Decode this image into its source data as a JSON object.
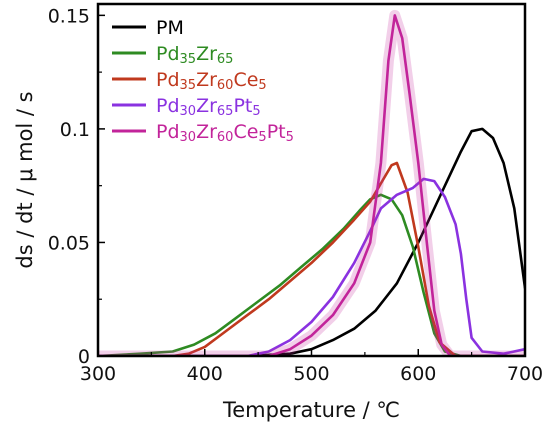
{
  "chart_data": {
    "type": "line",
    "xlabel": "Temperature / ℃",
    "ylabel": "ds / dt / μ mol / s",
    "xlim": [
      300,
      700
    ],
    "ylim": [
      0,
      0.155
    ],
    "x_ticks": [
      "300",
      "400",
      "500",
      "600",
      "700"
    ],
    "y_ticks": [
      "0",
      "0.05",
      "0.1",
      "0.15"
    ],
    "grid": false,
    "legend_position": "top-left",
    "series": [
      {
        "name": "PM",
        "legend": [
          {
            "t": "PM",
            "sub": false
          }
        ],
        "color": "#000000",
        "glow": false,
        "points": [
          [
            300,
            0
          ],
          [
            440,
            0
          ],
          [
            480,
            0.001
          ],
          [
            500,
            0.003
          ],
          [
            520,
            0.007
          ],
          [
            540,
            0.012
          ],
          [
            560,
            0.02
          ],
          [
            580,
            0.032
          ],
          [
            600,
            0.05
          ],
          [
            620,
            0.07
          ],
          [
            640,
            0.09
          ],
          [
            650,
            0.099
          ],
          [
            660,
            0.1
          ],
          [
            670,
            0.096
          ],
          [
            680,
            0.085
          ],
          [
            690,
            0.065
          ],
          [
            700,
            0.03
          ]
        ]
      },
      {
        "name": "Pd35Zr65",
        "legend": [
          {
            "t": "Pd",
            "sub": false
          },
          {
            "t": "35",
            "sub": true
          },
          {
            "t": "Zr",
            "sub": false
          },
          {
            "t": "65",
            "sub": true
          }
        ],
        "color": "#2e8b22",
        "glow": false,
        "points": [
          [
            300,
            0
          ],
          [
            340,
            0.001
          ],
          [
            370,
            0.002
          ],
          [
            390,
            0.005
          ],
          [
            410,
            0.01
          ],
          [
            430,
            0.017
          ],
          [
            450,
            0.024
          ],
          [
            470,
            0.031
          ],
          [
            490,
            0.039
          ],
          [
            510,
            0.047
          ],
          [
            530,
            0.056
          ],
          [
            545,
            0.064
          ],
          [
            555,
            0.069
          ],
          [
            565,
            0.071
          ],
          [
            575,
            0.069
          ],
          [
            585,
            0.062
          ],
          [
            595,
            0.048
          ],
          [
            605,
            0.028
          ],
          [
            615,
            0.01
          ],
          [
            625,
            0.002
          ],
          [
            640,
            0
          ],
          [
            700,
            0
          ]
        ]
      },
      {
        "name": "Pd35Zr60Ce5",
        "legend": [
          {
            "t": "Pd",
            "sub": false
          },
          {
            "t": "35",
            "sub": true
          },
          {
            "t": "Zr",
            "sub": false
          },
          {
            "t": "60",
            "sub": true
          },
          {
            "t": "Ce",
            "sub": false
          },
          {
            "t": "5",
            "sub": true
          }
        ],
        "color": "#c0391e",
        "glow": false,
        "points": [
          [
            300,
            0
          ],
          [
            370,
            0
          ],
          [
            385,
            0.001
          ],
          [
            400,
            0.004
          ],
          [
            420,
            0.011
          ],
          [
            440,
            0.018
          ],
          [
            460,
            0.025
          ],
          [
            480,
            0.033
          ],
          [
            500,
            0.041
          ],
          [
            520,
            0.05
          ],
          [
            540,
            0.06
          ],
          [
            555,
            0.068
          ],
          [
            565,
            0.076
          ],
          [
            575,
            0.084
          ],
          [
            580,
            0.085
          ],
          [
            590,
            0.072
          ],
          [
            600,
            0.048
          ],
          [
            610,
            0.022
          ],
          [
            620,
            0.006
          ],
          [
            635,
            0
          ],
          [
            700,
            0
          ]
        ]
      },
      {
        "name": "Pd30Zr65Pt5",
        "legend": [
          {
            "t": "Pd",
            "sub": false
          },
          {
            "t": "30",
            "sub": true
          },
          {
            "t": "Zr",
            "sub": false
          },
          {
            "t": "65",
            "sub": true
          },
          {
            "t": "Pt",
            "sub": false
          },
          {
            "t": "5",
            "sub": true
          }
        ],
        "color": "#8a32e0",
        "glow": false,
        "points": [
          [
            300,
            0
          ],
          [
            440,
            0
          ],
          [
            460,
            0.002
          ],
          [
            480,
            0.007
          ],
          [
            500,
            0.015
          ],
          [
            520,
            0.026
          ],
          [
            540,
            0.041
          ],
          [
            555,
            0.055
          ],
          [
            565,
            0.065
          ],
          [
            580,
            0.071
          ],
          [
            595,
            0.074
          ],
          [
            605,
            0.078
          ],
          [
            615,
            0.077
          ],
          [
            625,
            0.07
          ],
          [
            635,
            0.058
          ],
          [
            640,
            0.045
          ],
          [
            645,
            0.025
          ],
          [
            650,
            0.008
          ],
          [
            660,
            0.002
          ],
          [
            680,
            0.001
          ],
          [
            700,
            0.003
          ]
        ]
      },
      {
        "name": "Pd30Zr60Ce5Pt5",
        "legend": [
          {
            "t": "Pd",
            "sub": false
          },
          {
            "t": "30",
            "sub": true
          },
          {
            "t": "Zr",
            "sub": false
          },
          {
            "t": "60",
            "sub": true
          },
          {
            "t": "Ce",
            "sub": false
          },
          {
            "t": "5",
            "sub": true
          },
          {
            "t": "Pt",
            "sub": false
          },
          {
            "t": "5",
            "sub": true
          }
        ],
        "color": "#c2249a",
        "glow": true,
        "points": [
          [
            300,
            0
          ],
          [
            460,
            0
          ],
          [
            480,
            0.003
          ],
          [
            500,
            0.009
          ],
          [
            520,
            0.018
          ],
          [
            540,
            0.032
          ],
          [
            555,
            0.05
          ],
          [
            565,
            0.085
          ],
          [
            572,
            0.13
          ],
          [
            578,
            0.15
          ],
          [
            585,
            0.14
          ],
          [
            592,
            0.115
          ],
          [
            600,
            0.085
          ],
          [
            608,
            0.05
          ],
          [
            615,
            0.02
          ],
          [
            622,
            0.005
          ],
          [
            630,
            0
          ],
          [
            700,
            0
          ]
        ]
      }
    ]
  }
}
